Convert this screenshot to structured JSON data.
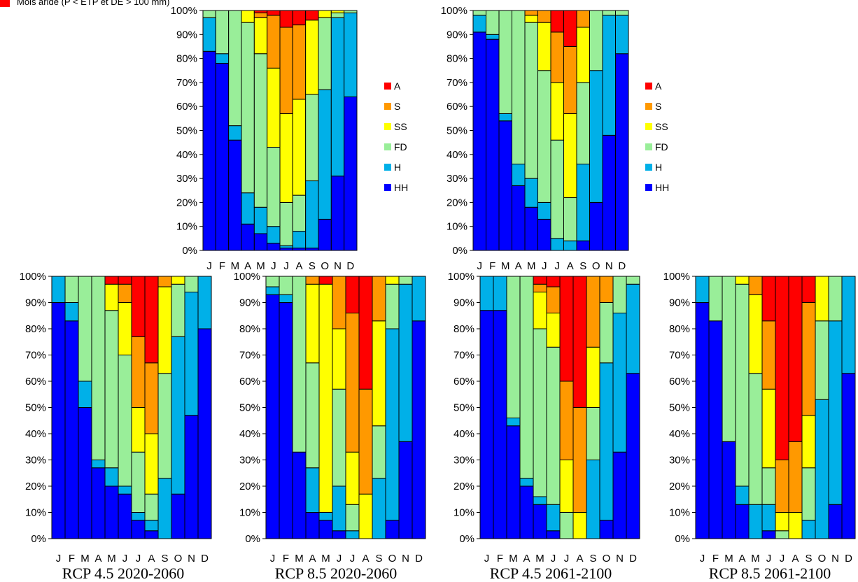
{
  "top_legend_note": "Mois aride (P < ETP et DE > 100 mm)",
  "colors": {
    "A": "#ff0000",
    "S": "#ff9900",
    "SS": "#ffff00",
    "FD": "#99ee99",
    "H": "#00b0e8",
    "HH": "#0000ff"
  },
  "chart_data": [
    {
      "type": "bar",
      "stacked": true,
      "panel": "top-left",
      "title": "",
      "caption": "",
      "categories": [
        "J",
        "F",
        "M",
        "A",
        "M",
        "J",
        "J",
        "A",
        "S",
        "O",
        "N",
        "D"
      ],
      "ylim": [
        0,
        100
      ],
      "yticks": [
        "0%",
        "10%",
        "20%",
        "30%",
        "40%",
        "50%",
        "60%",
        "70%",
        "80%",
        "90%",
        "100%"
      ],
      "series": [
        {
          "name": "HH",
          "values": [
            83,
            78,
            46,
            11,
            7,
            3,
            1,
            1,
            1,
            13,
            31,
            64
          ]
        },
        {
          "name": "H",
          "values": [
            14,
            4,
            6,
            13,
            11,
            7,
            1,
            7,
            28,
            54,
            66,
            35
          ]
        },
        {
          "name": "FD",
          "values": [
            3,
            18,
            48,
            71,
            64,
            33,
            18,
            15,
            36,
            30,
            2,
            1
          ]
        },
        {
          "name": "SS",
          "values": [
            0,
            0,
            0,
            5,
            15,
            33,
            37,
            40,
            31,
            3,
            1,
            0
          ]
        },
        {
          "name": "S",
          "values": [
            0,
            0,
            0,
            0,
            2,
            22,
            36,
            31,
            0,
            0,
            0,
            0
          ]
        },
        {
          "name": "A",
          "values": [
            0,
            0,
            0,
            0,
            1,
            2,
            7,
            6,
            4,
            0,
            0,
            0
          ]
        }
      ],
      "legend": [
        "A",
        "S",
        "SS",
        "FD",
        "H",
        "HH"
      ]
    },
    {
      "type": "bar",
      "stacked": true,
      "panel": "top-right",
      "title": "",
      "caption": "",
      "categories": [
        "J",
        "F",
        "M",
        "A",
        "M",
        "J",
        "J",
        "A",
        "S",
        "O",
        "N",
        "D"
      ],
      "ylim": [
        0,
        100
      ],
      "yticks": [
        "0%",
        "10%",
        "20%",
        "30%",
        "40%",
        "50%",
        "60%",
        "70%",
        "80%",
        "90%",
        "100%"
      ],
      "series": [
        {
          "name": "HH",
          "values": [
            91,
            88,
            54,
            27,
            18,
            13,
            0,
            0,
            4,
            20,
            48,
            82
          ]
        },
        {
          "name": "H",
          "values": [
            7,
            2,
            3,
            9,
            12,
            7,
            5,
            4,
            32,
            55,
            50,
            16
          ]
        },
        {
          "name": "FD",
          "values": [
            2,
            10,
            43,
            64,
            65,
            55,
            41,
            18,
            34,
            25,
            2,
            2
          ]
        },
        {
          "name": "SS",
          "values": [
            0,
            0,
            0,
            0,
            3,
            20,
            24,
            35,
            23,
            0,
            0,
            0
          ]
        },
        {
          "name": "S",
          "values": [
            0,
            0,
            0,
            0,
            2,
            5,
            21,
            28,
            7,
            0,
            0,
            0
          ]
        },
        {
          "name": "A",
          "values": [
            0,
            0,
            0,
            0,
            0,
            0,
            9,
            15,
            0,
            0,
            0,
            0
          ]
        }
      ],
      "legend": [
        "A",
        "S",
        "SS",
        "FD",
        "H",
        "HH"
      ]
    },
    {
      "type": "bar",
      "stacked": true,
      "panel": "bottom-1",
      "title": "",
      "caption": "RCP 4.5 2020-2060",
      "categories": [
        "J",
        "F",
        "M",
        "A",
        "M",
        "J",
        "J",
        "A",
        "S",
        "O",
        "N",
        "D"
      ],
      "ylim": [
        0,
        100
      ],
      "yticks": [
        "0%",
        "10%",
        "20%",
        "30%",
        "40%",
        "50%",
        "60%",
        "70%",
        "80%",
        "90%",
        "100%"
      ],
      "series": [
        {
          "name": "HH",
          "values": [
            90,
            83,
            50,
            27,
            20,
            17,
            7,
            3,
            0,
            17,
            47,
            80
          ]
        },
        {
          "name": "H",
          "values": [
            10,
            7,
            10,
            3,
            7,
            3,
            3,
            4,
            23,
            60,
            47,
            20
          ]
        },
        {
          "name": "FD",
          "values": [
            0,
            10,
            40,
            70,
            60,
            50,
            23,
            10,
            40,
            20,
            6,
            0
          ]
        },
        {
          "name": "SS",
          "values": [
            0,
            0,
            0,
            0,
            10,
            20,
            17,
            23,
            33,
            3,
            0,
            0
          ]
        },
        {
          "name": "S",
          "values": [
            0,
            0,
            0,
            0,
            0,
            7,
            27,
            27,
            4,
            0,
            0,
            0
          ]
        },
        {
          "name": "A",
          "values": [
            0,
            0,
            0,
            0,
            3,
            3,
            23,
            33,
            0,
            0,
            0,
            0
          ]
        }
      ]
    },
    {
      "type": "bar",
      "stacked": true,
      "panel": "bottom-2",
      "title": "",
      "caption": "RCP 8.5 2020-2060",
      "categories": [
        "J",
        "F",
        "M",
        "A",
        "M",
        "J",
        "J",
        "A",
        "S",
        "O",
        "N",
        "D"
      ],
      "ylim": [
        0,
        100
      ],
      "yticks": [
        "0%",
        "10%",
        "20%",
        "30%",
        "40%",
        "50%",
        "60%",
        "70%",
        "80%",
        "90%",
        "100%"
      ],
      "series": [
        {
          "name": "HH",
          "values": [
            93,
            90,
            33,
            10,
            7,
            3,
            0,
            0,
            0,
            7,
            37,
            83
          ]
        },
        {
          "name": "H",
          "values": [
            3,
            3,
            0,
            17,
            3,
            17,
            3,
            0,
            23,
            73,
            60,
            17
          ]
        },
        {
          "name": "FD",
          "values": [
            4,
            7,
            67,
            40,
            0,
            37,
            10,
            0,
            20,
            17,
            3,
            0
          ]
        },
        {
          "name": "SS",
          "values": [
            0,
            0,
            0,
            30,
            87,
            23,
            20,
            17,
            40,
            3,
            0,
            0
          ]
        },
        {
          "name": "S",
          "values": [
            0,
            0,
            0,
            3,
            0,
            20,
            53,
            40,
            17,
            0,
            0,
            0
          ]
        },
        {
          "name": "A",
          "values": [
            0,
            0,
            0,
            0,
            3,
            0,
            14,
            43,
            0,
            0,
            0,
            0
          ]
        }
      ]
    },
    {
      "type": "bar",
      "stacked": true,
      "panel": "bottom-3",
      "title": "",
      "caption": "RCP 4.5 2061-2100",
      "categories": [
        "J",
        "F",
        "M",
        "A",
        "M",
        "J",
        "J",
        "A",
        "S",
        "O",
        "N",
        "D"
      ],
      "ylim": [
        0,
        100
      ],
      "yticks": [
        "0%",
        "10%",
        "20%",
        "30%",
        "40%",
        "50%",
        "60%",
        "70%",
        "80%",
        "90%",
        "100%"
      ],
      "series": [
        {
          "name": "HH",
          "values": [
            87,
            87,
            43,
            20,
            13,
            3,
            0,
            0,
            0,
            7,
            33,
            63
          ]
        },
        {
          "name": "H",
          "values": [
            13,
            13,
            3,
            3,
            3,
            10,
            0,
            0,
            30,
            60,
            53,
            34
          ]
        },
        {
          "name": "FD",
          "values": [
            0,
            0,
            54,
            77,
            64,
            60,
            10,
            0,
            20,
            23,
            14,
            3
          ]
        },
        {
          "name": "SS",
          "values": [
            0,
            0,
            0,
            0,
            14,
            13,
            20,
            10,
            23,
            0,
            0,
            0
          ]
        },
        {
          "name": "S",
          "values": [
            0,
            0,
            0,
            0,
            3,
            10,
            30,
            40,
            27,
            10,
            0,
            0
          ]
        },
        {
          "name": "A",
          "values": [
            0,
            0,
            0,
            0,
            3,
            4,
            40,
            50,
            0,
            0,
            0,
            0
          ]
        }
      ]
    },
    {
      "type": "bar",
      "stacked": true,
      "panel": "bottom-4",
      "title": "",
      "caption": "RCP 8.5 2061-2100",
      "categories": [
        "J",
        "F",
        "M",
        "A",
        "M",
        "J",
        "J",
        "A",
        "S",
        "O",
        "N",
        "D"
      ],
      "ylim": [
        0,
        100
      ],
      "yticks": [
        "0%",
        "10%",
        "20%",
        "30%",
        "40%",
        "50%",
        "60%",
        "70%",
        "80%",
        "90%",
        "100%"
      ],
      "series": [
        {
          "name": "HH",
          "values": [
            90,
            83,
            37,
            13,
            0,
            3,
            0,
            0,
            0,
            0,
            13,
            63
          ]
        },
        {
          "name": "H",
          "values": [
            10,
            0,
            0,
            7,
            13,
            10,
            0,
            0,
            7,
            53,
            70,
            37
          ]
        },
        {
          "name": "FD",
          "values": [
            0,
            17,
            63,
            77,
            50,
            14,
            3,
            0,
            20,
            30,
            17,
            0
          ]
        },
        {
          "name": "SS",
          "values": [
            0,
            0,
            0,
            3,
            30,
            30,
            7,
            10,
            20,
            17,
            0,
            0
          ]
        },
        {
          "name": "S",
          "values": [
            0,
            0,
            0,
            0,
            7,
            26,
            20,
            27,
            43,
            0,
            0,
            0
          ]
        },
        {
          "name": "A",
          "values": [
            0,
            0,
            0,
            0,
            0,
            17,
            70,
            63,
            10,
            0,
            0,
            0
          ]
        }
      ]
    }
  ]
}
